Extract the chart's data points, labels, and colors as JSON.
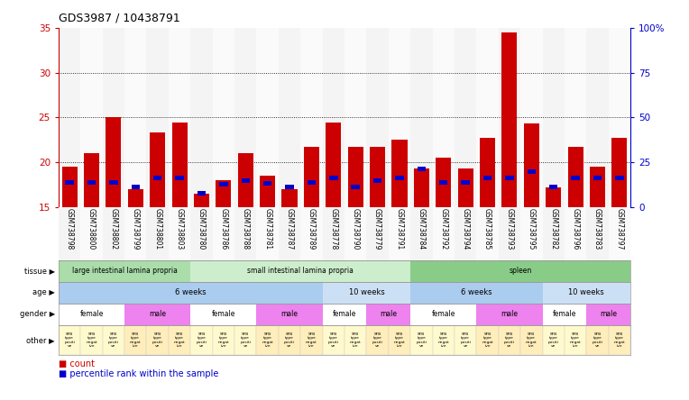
{
  "title": "GDS3987 / 10438791",
  "samples": [
    "GSM738798",
    "GSM738800",
    "GSM738802",
    "GSM738799",
    "GSM738801",
    "GSM738803",
    "GSM738780",
    "GSM738786",
    "GSM738788",
    "GSM738781",
    "GSM738787",
    "GSM738789",
    "GSM738778",
    "GSM738790",
    "GSM738779",
    "GSM738791",
    "GSM738784",
    "GSM738792",
    "GSM738794",
    "GSM738785",
    "GSM738793",
    "GSM738795",
    "GSM738782",
    "GSM738796",
    "GSM738783",
    "GSM738797"
  ],
  "red_values": [
    19.5,
    21.0,
    25.0,
    17.0,
    23.3,
    24.4,
    16.5,
    18.0,
    21.0,
    18.5,
    17.0,
    21.7,
    24.4,
    21.7,
    21.7,
    22.5,
    19.3,
    20.5,
    19.3,
    22.7,
    34.5,
    24.3,
    17.2,
    21.7,
    19.5,
    22.7
  ],
  "blue_values": [
    17.5,
    17.5,
    17.5,
    17.0,
    18.0,
    18.0,
    16.3,
    17.3,
    17.7,
    17.4,
    17.0,
    17.5,
    18.0,
    17.0,
    17.7,
    18.0,
    19.0,
    17.5,
    17.5,
    18.0,
    18.0,
    18.7,
    17.0,
    18.0,
    18.0,
    18.0
  ],
  "ylim": [
    15,
    35
  ],
  "yticks_left": [
    15,
    20,
    25,
    30,
    35
  ],
  "yticks_right": [
    0,
    25,
    50,
    75,
    100
  ],
  "bar_color": "#cc0000",
  "blue_color": "#0000cc",
  "left_axis_color": "#cc0000",
  "right_axis_color": "#0000cc",
  "tissue_data": [
    {
      "label": "large intestinal lamina propria",
      "start": 0,
      "end": 6,
      "color": "#aaddaa"
    },
    {
      "label": "small intestinal lamina propria",
      "start": 6,
      "end": 16,
      "color": "#cceecc"
    },
    {
      "label": "spleen",
      "start": 16,
      "end": 26,
      "color": "#88cc88"
    }
  ],
  "age_data": [
    {
      "label": "6 weeks",
      "start": 0,
      "end": 12,
      "color": "#aaccee"
    },
    {
      "label": "10 weeks",
      "start": 12,
      "end": 16,
      "color": "#cce0f5"
    },
    {
      "label": "6 weeks",
      "start": 16,
      "end": 22,
      "color": "#aaccee"
    },
    {
      "label": "10 weeks",
      "start": 22,
      "end": 26,
      "color": "#cce0f5"
    }
  ],
  "gender_data": [
    {
      "label": "female",
      "start": 0,
      "end": 3,
      "color": "#ffffff"
    },
    {
      "label": "male",
      "start": 3,
      "end": 6,
      "color": "#ee82ee"
    },
    {
      "label": "female",
      "start": 6,
      "end": 9,
      "color": "#ffffff"
    },
    {
      "label": "male",
      "start": 9,
      "end": 12,
      "color": "#ee82ee"
    },
    {
      "label": "female",
      "start": 12,
      "end": 14,
      "color": "#ffffff"
    },
    {
      "label": "male",
      "start": 14,
      "end": 16,
      "color": "#ee82ee"
    },
    {
      "label": "female",
      "start": 16,
      "end": 19,
      "color": "#ffffff"
    },
    {
      "label": "male",
      "start": 19,
      "end": 22,
      "color": "#ee82ee"
    },
    {
      "label": "female",
      "start": 22,
      "end": 24,
      "color": "#ffffff"
    },
    {
      "label": "male",
      "start": 24,
      "end": 26,
      "color": "#ee82ee"
    }
  ],
  "other_positive_color": "#fffacd",
  "other_negative_color": "#ffeebb",
  "fig_width": 7.64,
  "fig_height": 4.44,
  "dpi": 100
}
